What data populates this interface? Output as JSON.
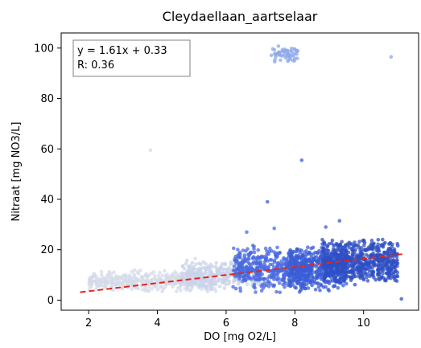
{
  "chart_data": {
    "type": "scatter",
    "title": "Cleydaellaan_aartselaar",
    "xlabel": "DO [mg O2/L]",
    "ylabel": "Nitraat [mg NO3/L]",
    "xlim": [
      1.2,
      11.6
    ],
    "ylim": [
      -4,
      106
    ],
    "xticks": [
      2,
      4,
      6,
      8,
      10
    ],
    "yticks": [
      0,
      20,
      40,
      60,
      80,
      100
    ],
    "grid": false,
    "annotation": {
      "lines": [
        "y = 1.61x + 0.33",
        "R: 0.36"
      ],
      "placement": "top-left"
    },
    "fit_line": {
      "slope": 1.61,
      "intercept": 0.33,
      "x_range": [
        1.75,
        11.2
      ],
      "color": "#e3261c",
      "style": "dashed"
    },
    "color_scale": [
      "#d4dbe8",
      "#b4c4ea",
      "#6f8ee6",
      "#3c5ed8",
      "#2c4bbb"
    ],
    "clusters": [
      {
        "x": [
          2.0,
          5.7
        ],
        "y": [
          3,
          12
        ],
        "n": 420,
        "color": "#d4dbe8"
      },
      {
        "x": [
          4.7,
          7.0
        ],
        "y": [
          4,
          16
        ],
        "n": 330,
        "color": "#c9d3e9"
      },
      {
        "x": [
          6.2,
          8.5
        ],
        "y": [
          3,
          22
        ],
        "n": 480,
        "color": "#4a6ae0"
      },
      {
        "x": [
          7.8,
          9.5
        ],
        "y": [
          3,
          22
        ],
        "n": 520,
        "color": "#3b5dd6"
      },
      {
        "x": [
          8.8,
          11.0
        ],
        "y": [
          6,
          25
        ],
        "n": 650,
        "color": "#2f4fc3"
      },
      {
        "x": [
          7.3,
          8.1
        ],
        "y": [
          94,
          101
        ],
        "n": 55,
        "color": "#8ea8ea"
      }
    ],
    "outliers": [
      {
        "x": 3.8,
        "y": 59.5,
        "color": "#d4dbe8"
      },
      {
        "x": 8.2,
        "y": 55.5,
        "color": "#3c5ed8"
      },
      {
        "x": 7.2,
        "y": 39,
        "color": "#3c5ed8"
      },
      {
        "x": 10.8,
        "y": 96.5,
        "color": "#8ea8ea"
      },
      {
        "x": 9.3,
        "y": 31.5,
        "color": "#3c5ed8"
      },
      {
        "x": 8.9,
        "y": 29,
        "color": "#3c5ed8"
      },
      {
        "x": 6.6,
        "y": 27,
        "color": "#4a6ae0"
      },
      {
        "x": 7.4,
        "y": 28.5,
        "color": "#4a6ae0"
      },
      {
        "x": 5.1,
        "y": 16.5,
        "color": "#d4dbe8"
      },
      {
        "x": 2.3,
        "y": 6,
        "color": "#d4dbe8"
      },
      {
        "x": 11.1,
        "y": 0.5,
        "color": "#2f4fc3"
      }
    ]
  }
}
